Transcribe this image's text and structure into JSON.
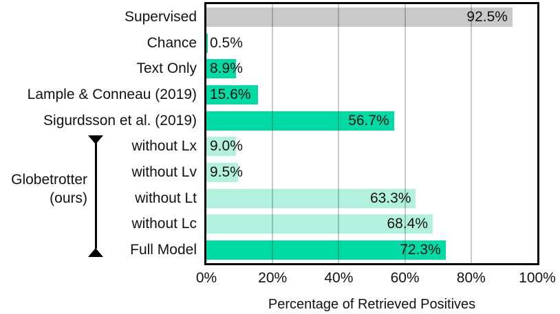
{
  "chart_data": {
    "type": "bar",
    "orientation": "horizontal",
    "xlabel": "Percentage of Retrieved Positives",
    "xlim": [
      0,
      100
    ],
    "grid": true,
    "xticks": [
      {
        "value": 0,
        "label": "0%"
      },
      {
        "value": 20,
        "label": "20%"
      },
      {
        "value": 40,
        "label": "40%"
      },
      {
        "value": 60,
        "label": "60%"
      },
      {
        "value": 80,
        "label": "80%"
      },
      {
        "value": 100,
        "label": "100%"
      }
    ],
    "categories": [
      "Supervised",
      "Chance",
      "Text Only",
      "Lample & Conneau (2019)",
      "Sigurdsson et al. (2019)",
      "without Lx",
      "without Lv",
      "without Lt",
      "without Lc",
      "Full Model"
    ],
    "values": [
      92.5,
      0.5,
      8.9,
      15.6,
      56.7,
      9.0,
      9.5,
      63.3,
      68.4,
      72.3
    ],
    "value_labels": [
      "92.5%",
      "0.5%",
      "8.9%",
      "15.6%",
      "56.7%",
      "9.0%",
      "9.5%",
      "63.3%",
      "68.4%",
      "72.3%"
    ],
    "bar_styles": [
      "gray",
      "teal",
      "teal",
      "teal",
      "teal",
      "light",
      "light",
      "light",
      "light",
      "teal"
    ],
    "colors": {
      "gray": "#c9c9c9",
      "teal": "#00dba6",
      "light": "#b2f1de",
      "frame": "#000000",
      "grid": "#c8c8c8",
      "text": "#111111"
    },
    "group": {
      "label_line1": "Globetrotter",
      "label_line2": "(ours)",
      "start_index": 5,
      "end_index": 9
    }
  }
}
